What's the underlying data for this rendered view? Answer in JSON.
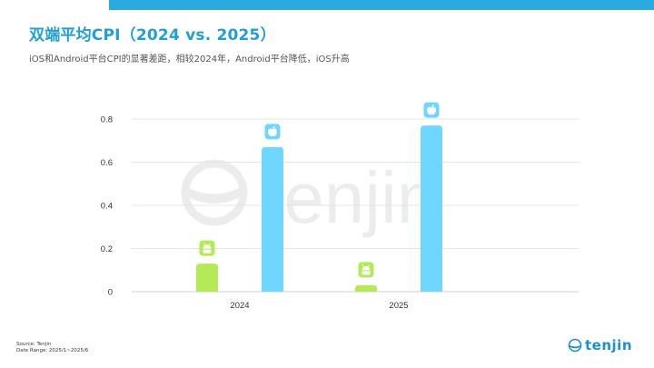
{
  "page": {
    "title": "双端平均CPI（2024 vs. 2025）",
    "subtitle": "iOS和Android平台CPI的显著差距，相较2024年，Android平台降低，iOS升高",
    "source_line": "Source: Tenjin",
    "date_range_line": "Date Range: 2025/1~2025/6",
    "watermark": "tenjin",
    "brand_name": "tenjin"
  },
  "colors": {
    "accent_top_bar": "#29abe2",
    "title": "#1d9fd8",
    "android": "#b3ea55",
    "ios": "#6fd7ff",
    "axis_text": "#333333",
    "gridline": "#e3e3e3",
    "brand": "#1c8fcf"
  },
  "icons": {
    "android": "android-icon",
    "ios": "apple-icon"
  },
  "chart_data": {
    "type": "bar",
    "categories": [
      "2024",
      "2025"
    ],
    "series": [
      {
        "key": "android",
        "values": [
          0.13,
          0.03
        ]
      },
      {
        "key": "ios",
        "values": [
          0.67,
          0.77
        ]
      }
    ],
    "yticks": [
      "0",
      "0.2",
      "0.4",
      "0.6",
      "0.8"
    ],
    "ylim": [
      0,
      0.8
    ],
    "grid": true,
    "legend": "none"
  }
}
